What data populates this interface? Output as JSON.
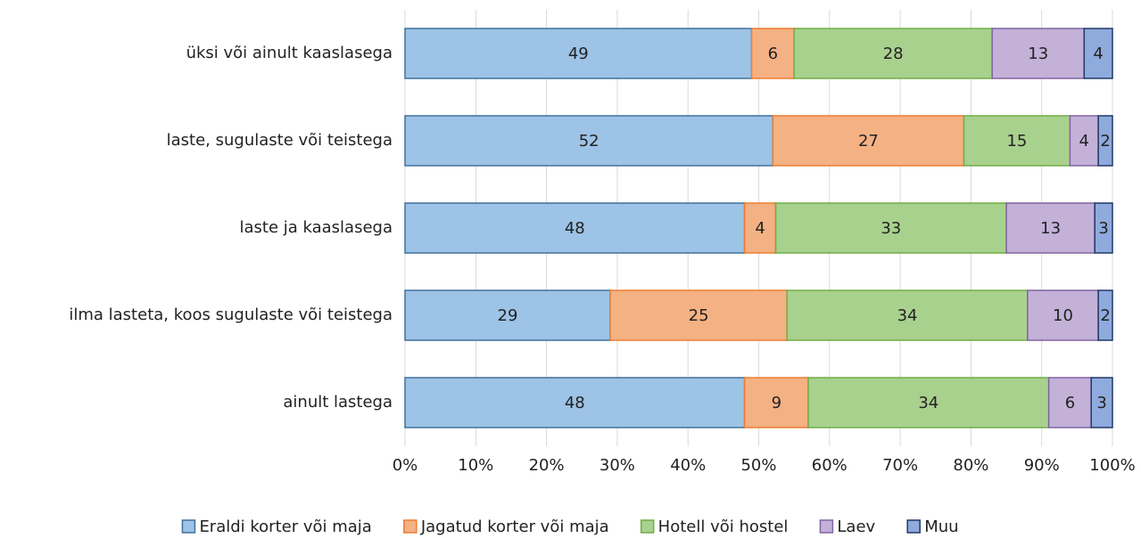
{
  "chart_data": {
    "type": "stacked_barh",
    "categories": [
      "üksi või ainult kaaslasega",
      "laste, sugulaste või teistega",
      "laste ja kaaslasega",
      "ilma lasteta, koos sugulaste või teistega",
      "ainult lastega"
    ],
    "series": [
      {
        "name": "Eraldi korter või maja",
        "color": "#9dc3e6",
        "edge": "#41719c",
        "values": [
          49,
          52,
          48.0,
          29,
          48
        ],
        "value_labels": [
          "49",
          "52",
          "48",
          "29",
          "48"
        ]
      },
      {
        "name": "Jagatud korter või maja",
        "color": "#f4b183",
        "edge": "#ed7d31",
        "values": [
          6,
          27,
          4.4,
          25,
          9
        ],
        "value_labels": [
          "6",
          "27",
          "4",
          "25",
          "9"
        ]
      },
      {
        "name": "Hotell või hostel",
        "color": "#a9d18e",
        "edge": "#70ad47",
        "values": [
          28,
          15,
          32.6,
          34,
          34
        ],
        "value_labels": [
          "28",
          "15",
          "33",
          "34",
          "34"
        ]
      },
      {
        "name": "Laev",
        "color": "#c3b1d8",
        "edge": "#8064a2",
        "values": [
          13,
          4,
          12.5,
          10,
          6
        ],
        "value_labels": [
          "13",
          "4",
          "13",
          "10",
          "6"
        ]
      },
      {
        "name": "Muu",
        "color": "#8faadc",
        "edge": "#203864",
        "values": [
          4,
          2,
          2.5,
          2,
          3
        ],
        "value_labels": [
          "4",
          "2",
          "3",
          "2",
          "3"
        ]
      }
    ],
    "xlim": [
      0,
      100
    ],
    "xticks": [
      {
        "value": 0,
        "label": "0%"
      },
      {
        "value": 10,
        "label": "10%"
      },
      {
        "value": 20,
        "label": "20%"
      },
      {
        "value": 30,
        "label": "30%"
      },
      {
        "value": 40,
        "label": "40%"
      },
      {
        "value": 50,
        "label": "50%"
      },
      {
        "value": 60,
        "label": "60%"
      },
      {
        "value": 70,
        "label": "70%"
      },
      {
        "value": 80,
        "label": "80%"
      },
      {
        "value": 90,
        "label": "90%"
      },
      {
        "value": 100,
        "label": "100%"
      }
    ],
    "grid": true,
    "legend": "bottom"
  }
}
